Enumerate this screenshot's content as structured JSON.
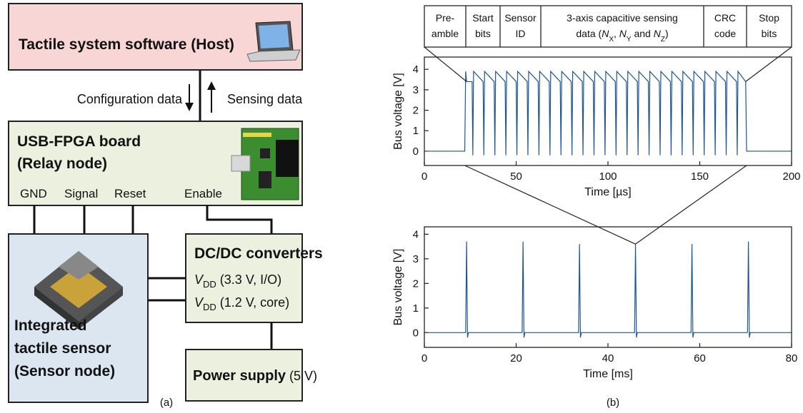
{
  "diagram": {
    "host": {
      "label": "Tactile system software (Host)"
    },
    "links": {
      "down": "Configuration data",
      "up": "Sensing data"
    },
    "relay": {
      "title": "USB-FPGA board",
      "subtitle": "(Relay node)",
      "pins": [
        "GND",
        "Signal",
        "Reset",
        "Enable"
      ]
    },
    "converters": {
      "title": "DC/DC converters",
      "rails": [
        {
          "symbol": "V",
          "sub": "DD",
          "spec": " (3.3 V, I/O)"
        },
        {
          "symbol": "V",
          "sub": "DD",
          "spec": " (1.2 V, core)"
        }
      ]
    },
    "sensor": {
      "lines": [
        "Integrated",
        "tactile sensor",
        "(Sensor node)"
      ]
    },
    "supply": {
      "label": "Power supply",
      "spec": " (5 V)"
    },
    "caption": "(a)"
  },
  "packet": {
    "fields": [
      [
        [
          "Pre-"
        ],
        [
          "amble"
        ]
      ],
      [
        [
          "Start"
        ],
        [
          "bits"
        ]
      ],
      [
        [
          "Sensor"
        ],
        [
          "ID"
        ]
      ],
      [
        [
          "3-axis capacitive sensing"
        ],
        [
          "data (",
          {
            "text": "N",
            "italic": true
          },
          {
            "text": "X",
            "sub": true
          },
          ", ",
          {
            "text": "N",
            "italic": true
          },
          {
            "text": "Y",
            "sub": true
          },
          " and ",
          {
            "text": "N",
            "italic": true
          },
          {
            "text": "Z",
            "sub": true
          },
          ")"
        ]
      ],
      [
        [
          "CRC"
        ],
        [
          "code"
        ]
      ],
      [
        [
          "Stop"
        ],
        [
          "bits"
        ]
      ]
    ],
    "caption": "(b)"
  },
  "chart_data": [
    {
      "type": "line",
      "xlabel": "Time [µs]",
      "ylabel": "Bus voltage [V]",
      "color": "#1f5597",
      "xlim": [
        0,
        200
      ],
      "xticks": [
        0,
        50,
        100,
        150,
        200
      ],
      "ylim": [
        -0.7,
        4.6
      ],
      "yticks": [
        0,
        1,
        2,
        3,
        4
      ],
      "x": [
        0,
        22,
        22.5,
        23,
        26,
        26.4,
        26.8,
        32,
        32.4,
        32.8,
        38,
        38.4,
        38.8,
        44,
        44.4,
        44.8,
        50,
        50.4,
        50.8,
        56,
        56.4,
        56.8,
        62,
        62.4,
        62.8,
        68,
        68.4,
        68.8,
        74,
        74.4,
        74.8,
        80,
        80.4,
        80.8,
        86,
        86.4,
        86.8,
        92,
        92.4,
        92.8,
        98,
        98.4,
        98.8,
        104,
        104.4,
        104.8,
        110,
        110.4,
        110.8,
        116,
        116.4,
        116.8,
        122,
        122.4,
        122.8,
        128,
        128.4,
        128.8,
        134,
        134.4,
        134.8,
        140,
        140.4,
        140.8,
        146,
        146.4,
        146.8,
        152,
        152.4,
        152.8,
        158,
        158.4,
        158.8,
        164,
        164.4,
        164.8,
        170,
        170.4,
        170.8,
        175,
        175.5,
        200
      ],
      "values": [
        0,
        0,
        3.9,
        3.4,
        3.4,
        -0.2,
        3.9,
        3.4,
        -0.2,
        3.9,
        3.4,
        -0.2,
        3.9,
        3.4,
        -0.2,
        3.9,
        3.4,
        -0.2,
        3.9,
        3.4,
        -0.2,
        3.9,
        3.4,
        -0.2,
        3.9,
        3.4,
        -0.2,
        3.9,
        3.4,
        -0.2,
        3.9,
        3.4,
        -0.2,
        3.9,
        3.4,
        -0.2,
        3.9,
        3.4,
        -0.2,
        3.9,
        3.4,
        -0.2,
        3.9,
        3.4,
        -0.2,
        3.9,
        3.4,
        -0.2,
        3.9,
        3.4,
        -0.2,
        3.9,
        3.4,
        -0.2,
        3.9,
        3.4,
        -0.2,
        3.9,
        3.4,
        -0.2,
        3.9,
        3.4,
        -0.2,
        3.9,
        3.4,
        -0.2,
        3.9,
        3.4,
        -0.2,
        3.9,
        3.4,
        -0.2,
        3.9,
        3.4,
        -0.2,
        3.9,
        3.4,
        -0.2,
        3.9,
        3.4,
        0,
        0
      ]
    },
    {
      "type": "line",
      "xlabel": "Time [ms]",
      "ylabel": "Bus voltage [V]",
      "color": "#1f5597",
      "xlim": [
        0,
        80
      ],
      "xticks": [
        0,
        20,
        40,
        60,
        80
      ],
      "ylim": [
        -0.6,
        4.3
      ],
      "yticks": [
        0,
        1,
        2,
        3,
        4
      ],
      "x": [
        0,
        9,
        9.2,
        9.4,
        9.6,
        21.3,
        21.5,
        21.7,
        21.9,
        33.6,
        33.8,
        34,
        34.2,
        45.8,
        46,
        46.2,
        46.4,
        58.1,
        58.3,
        58.5,
        58.7,
        70.4,
        70.6,
        70.8,
        71,
        80
      ],
      "values": [
        0,
        0,
        3.7,
        -0.2,
        0,
        0,
        3.7,
        -0.2,
        0,
        0,
        3.6,
        -0.2,
        0,
        0,
        3.6,
        -0.2,
        0,
        0,
        3.6,
        -0.2,
        0,
        0,
        3.7,
        -0.2,
        0,
        0
      ]
    }
  ]
}
